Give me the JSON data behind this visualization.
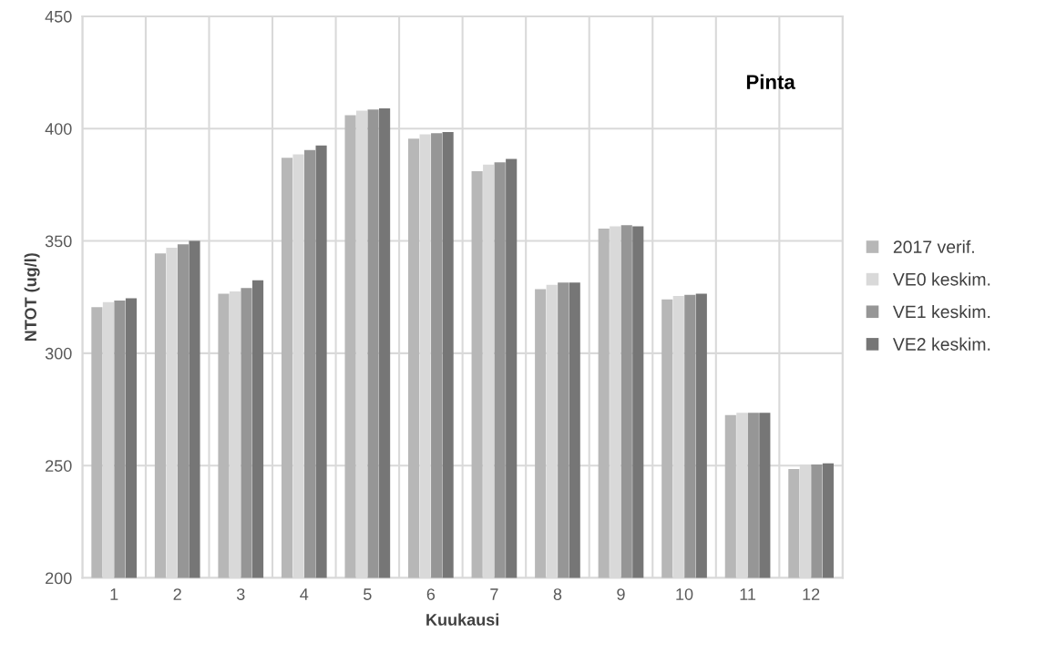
{
  "chart_data": {
    "type": "bar",
    "xlabel": "Kuukausi",
    "ylabel": "NTOT (ug/l)",
    "annotations": [
      "Pinta"
    ],
    "categories": [
      "1",
      "2",
      "3",
      "4",
      "5",
      "6",
      "7",
      "8",
      "9",
      "10",
      "11",
      "12"
    ],
    "series": [
      {
        "name": "2017 verif.",
        "color": "#b7b7b7",
        "values": [
          320.5,
          344.5,
          326.5,
          387,
          406,
          395.5,
          381,
          328.5,
          355.5,
          324,
          272.5,
          248.5
        ]
      },
      {
        "name": "VE0 keskim.",
        "color": "#d9d9d9",
        "values": [
          322.8,
          347,
          327.5,
          388.5,
          408,
          397.5,
          384,
          330.5,
          356.5,
          325.5,
          273.5,
          250.5
        ]
      },
      {
        "name": "VE1 keskim.",
        "color": "#969696",
        "values": [
          323.5,
          348.5,
          329,
          390.5,
          408.5,
          398,
          385,
          331.5,
          357,
          326,
          273.5,
          250.5
        ]
      },
      {
        "name": "VE2 keskim.",
        "color": "#767676",
        "values": [
          324.5,
          350,
          332.5,
          392.5,
          409,
          398.5,
          386.5,
          331.5,
          356.5,
          326.5,
          273.5,
          251
        ]
      }
    ],
    "ylim": [
      200,
      450
    ],
    "yticks": [
      200,
      250,
      300,
      350,
      400,
      450
    ],
    "grid": true,
    "legend": "right"
  }
}
